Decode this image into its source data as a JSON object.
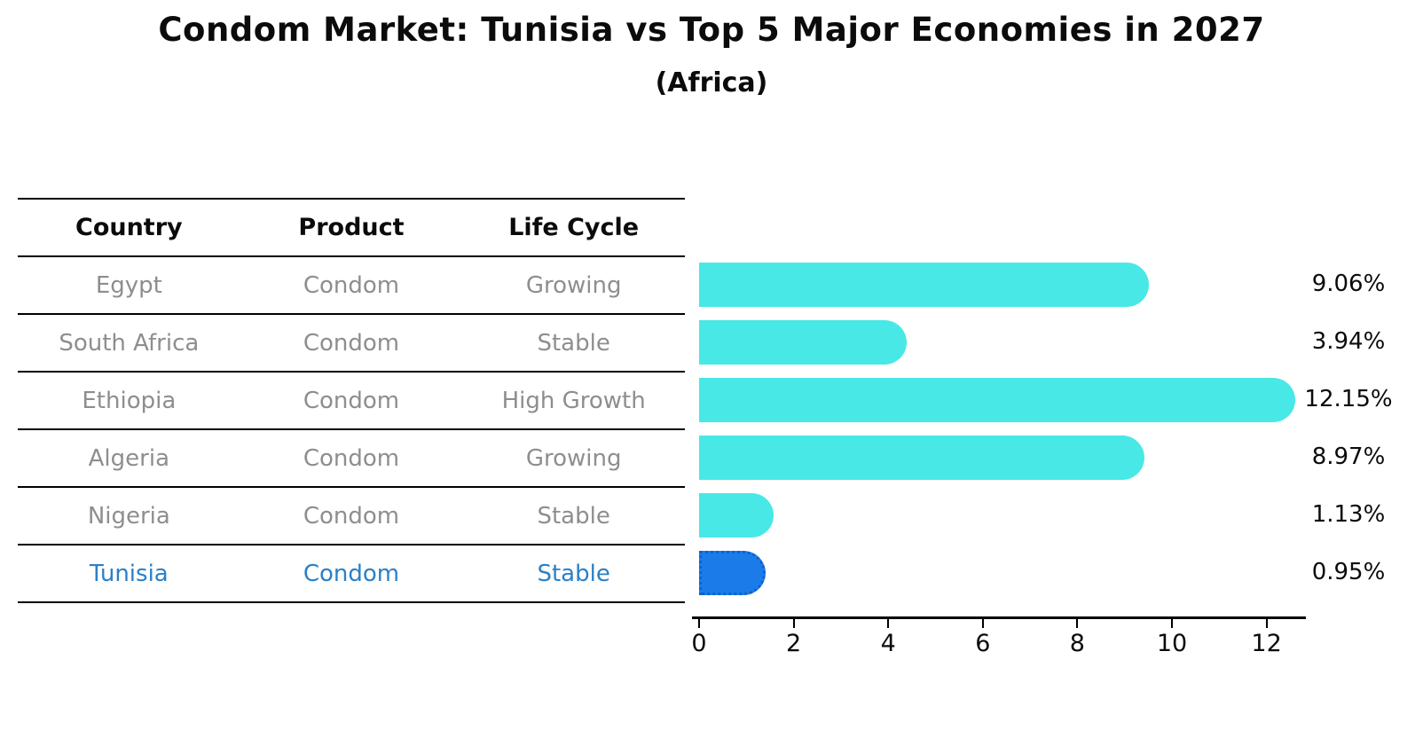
{
  "title": "Condom Market: Tunisia vs Top 5 Major Economies in 2027",
  "subtitle": "(Africa)",
  "table": {
    "headers": [
      "Country",
      "Product",
      "Life Cycle"
    ],
    "rows": [
      {
        "country": "Egypt",
        "product": "Condom",
        "life_cycle": "Growing",
        "highlight": false
      },
      {
        "country": "South Africa",
        "product": "Condom",
        "life_cycle": "Stable",
        "highlight": false
      },
      {
        "country": "Ethiopia",
        "product": "Condom",
        "life_cycle": "High Growth",
        "highlight": false
      },
      {
        "country": "Algeria",
        "product": "Condom",
        "life_cycle": "Growing",
        "highlight": false
      },
      {
        "country": "Nigeria",
        "product": "Condom",
        "life_cycle": "Stable",
        "highlight": false
      },
      {
        "country": "Tunisia",
        "product": "Condom",
        "life_cycle": "Stable",
        "highlight": true
      }
    ]
  },
  "chart_data": {
    "type": "bar",
    "orientation": "horizontal",
    "title": "Condom Market: Tunisia vs Top 5 Major Economies in 2027",
    "subtitle": "(Africa)",
    "categories": [
      "Egypt",
      "South Africa",
      "Ethiopia",
      "Algeria",
      "Nigeria",
      "Tunisia"
    ],
    "values": [
      9.06,
      3.94,
      12.15,
      8.97,
      1.13,
      0.95
    ],
    "value_labels": [
      "9.06%",
      "3.94%",
      "12.15%",
      "8.97%",
      "1.13%",
      "0.95%"
    ],
    "highlight_index": 5,
    "xticks": [
      0,
      2,
      4,
      6,
      8,
      10,
      12
    ],
    "xlim": [
      0,
      12.8
    ],
    "grid": false,
    "legend": false,
    "xlabel": "",
    "ylabel": ""
  },
  "colors": {
    "bar": "#48e8e6",
    "highlight_bar": "#1b7ce9",
    "highlight_border": "#0e62ce",
    "highlight_text": "#2a80c8",
    "row_text": "#8e8e8e",
    "axis": "#000000"
  }
}
